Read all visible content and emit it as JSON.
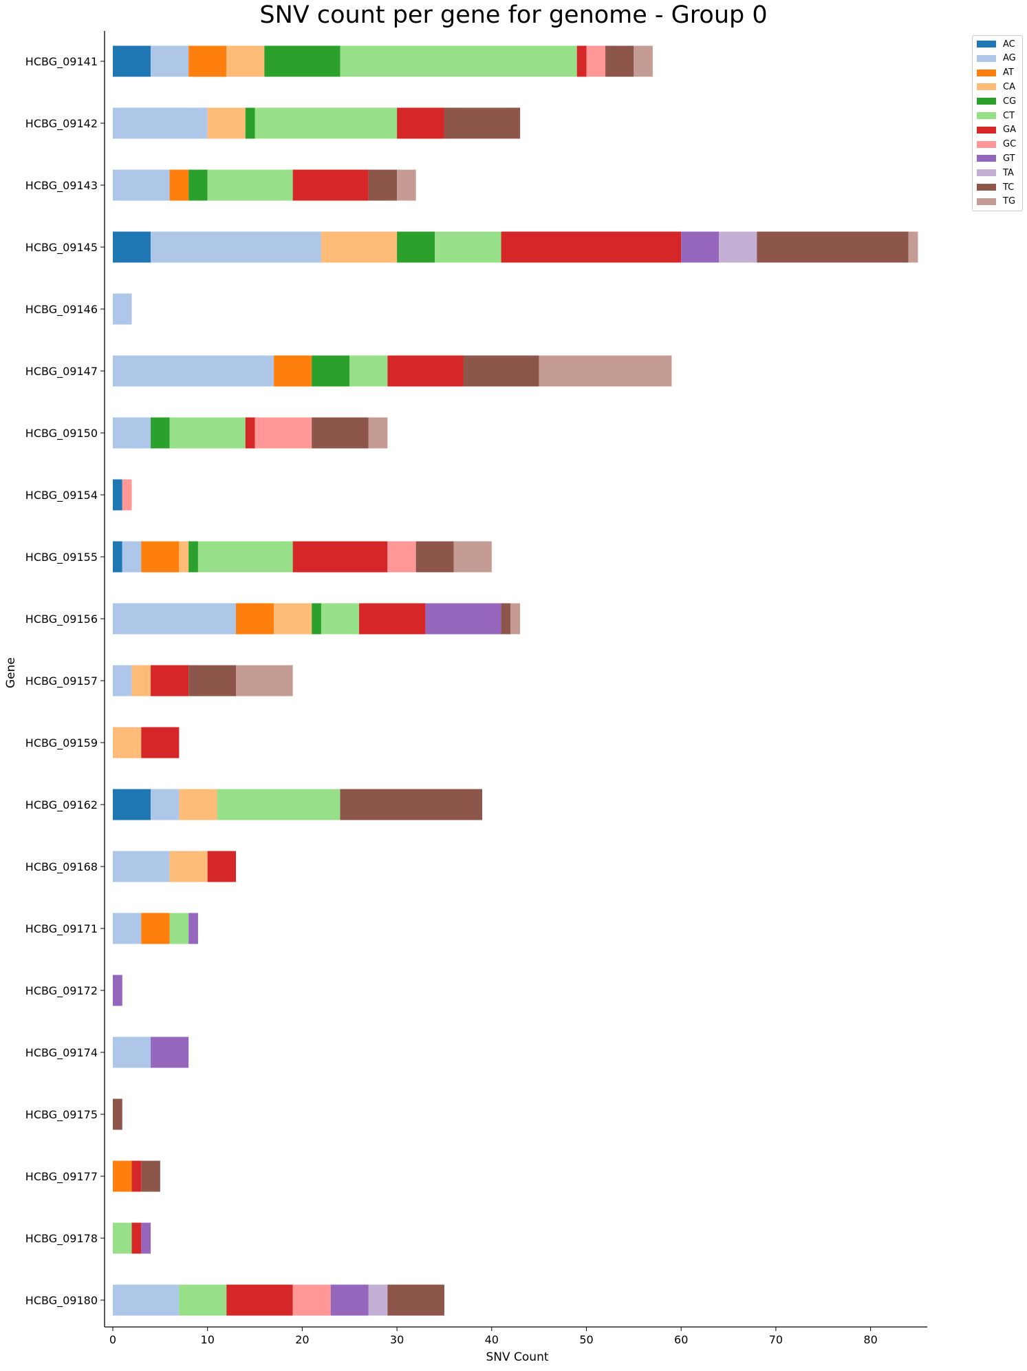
{
  "chart_data": {
    "type": "bar",
    "orientation": "horizontal",
    "stacked": true,
    "title": "SNV count per gene for genome - Group 0",
    "xlabel": "SNV Count",
    "ylabel": "Gene",
    "xlim": [
      0,
      86
    ],
    "xticks": [
      0,
      10,
      20,
      30,
      40,
      50,
      60,
      70,
      80
    ],
    "grid": false,
    "legend_position": "top-right",
    "categories": [
      "HCBG_09141",
      "HCBG_09142",
      "HCBG_09143",
      "HCBG_09145",
      "HCBG_09146",
      "HCBG_09147",
      "HCBG_09150",
      "HCBG_09154",
      "HCBG_09155",
      "HCBG_09156",
      "HCBG_09157",
      "HCBG_09159",
      "HCBG_09162",
      "HCBG_09168",
      "HCBG_09171",
      "HCBG_09172",
      "HCBG_09174",
      "HCBG_09175",
      "HCBG_09177",
      "HCBG_09178",
      "HCBG_09180"
    ],
    "series": [
      {
        "name": "AC",
        "color": "#1f77b4",
        "values": [
          4,
          0,
          0,
          4,
          0,
          0,
          0,
          1,
          1,
          0,
          0,
          0,
          4,
          0,
          0,
          0,
          0,
          0,
          0,
          0,
          0
        ]
      },
      {
        "name": "AG",
        "color": "#aec7e8",
        "values": [
          4,
          10,
          6,
          18,
          2,
          17,
          4,
          0,
          2,
          13,
          2,
          0,
          3,
          6,
          3,
          0,
          4,
          0,
          0,
          0,
          7
        ]
      },
      {
        "name": "AT",
        "color": "#ff7f0e",
        "values": [
          4,
          0,
          2,
          0,
          0,
          4,
          0,
          0,
          4,
          4,
          0,
          0,
          0,
          0,
          3,
          0,
          0,
          0,
          2,
          0,
          0
        ]
      },
      {
        "name": "CA",
        "color": "#ffbb78",
        "values": [
          4,
          4,
          0,
          8,
          0,
          0,
          0,
          0,
          1,
          4,
          2,
          3,
          4,
          4,
          0,
          0,
          0,
          0,
          0,
          0,
          0
        ]
      },
      {
        "name": "CG",
        "color": "#2ca02c",
        "values": [
          8,
          1,
          2,
          4,
          0,
          4,
          2,
          0,
          1,
          1,
          0,
          0,
          0,
          0,
          0,
          0,
          0,
          0,
          0,
          0,
          0
        ]
      },
      {
        "name": "CT",
        "color": "#98df8a",
        "values": [
          25,
          15,
          9,
          7,
          0,
          4,
          8,
          0,
          10,
          4,
          0,
          0,
          13,
          0,
          2,
          0,
          0,
          0,
          0,
          2,
          5
        ]
      },
      {
        "name": "GA",
        "color": "#d62728",
        "values": [
          1,
          5,
          8,
          19,
          0,
          8,
          1,
          0,
          10,
          7,
          4,
          4,
          0,
          3,
          0,
          0,
          0,
          0,
          1,
          1,
          7
        ]
      },
      {
        "name": "GC",
        "color": "#ff9896",
        "values": [
          2,
          0,
          0,
          0,
          0,
          0,
          6,
          1,
          3,
          0,
          0,
          0,
          0,
          0,
          0,
          0,
          0,
          0,
          0,
          0,
          4
        ]
      },
      {
        "name": "GT",
        "color": "#9467bd",
        "values": [
          0,
          0,
          0,
          4,
          0,
          0,
          0,
          0,
          0,
          8,
          0,
          0,
          0,
          0,
          1,
          1,
          4,
          0,
          0,
          1,
          4
        ]
      },
      {
        "name": "TA",
        "color": "#c5b0d5",
        "values": [
          0,
          0,
          0,
          4,
          0,
          0,
          0,
          0,
          0,
          0,
          0,
          0,
          0,
          0,
          0,
          0,
          0,
          0,
          0,
          0,
          2
        ]
      },
      {
        "name": "TC",
        "color": "#8c564b",
        "values": [
          3,
          8,
          3,
          16,
          0,
          8,
          6,
          0,
          4,
          1,
          5,
          0,
          15,
          0,
          0,
          0,
          0,
          1,
          2,
          0,
          6
        ]
      },
      {
        "name": "TG",
        "color": "#c49c94",
        "values": [
          2,
          0,
          2,
          1,
          0,
          14,
          2,
          0,
          4,
          1,
          6,
          0,
          0,
          0,
          0,
          0,
          0,
          0,
          0,
          0,
          0
        ]
      }
    ]
  }
}
